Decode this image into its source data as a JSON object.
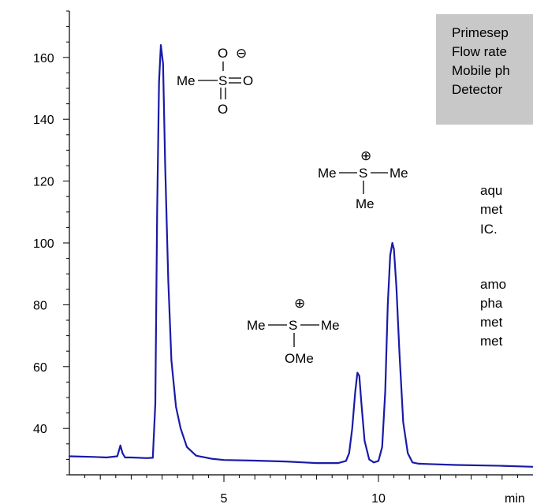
{
  "chart_data": {
    "type": "line",
    "title": "",
    "xlabel": "",
    "ylabel": "",
    "x_unit_label": "min",
    "xlim": [
      0,
      15
    ],
    "ylim": [
      25,
      175
    ],
    "x_ticks": [
      5,
      10
    ],
    "y_ticks": [
      40,
      60,
      80,
      100,
      120,
      140,
      160
    ],
    "grid": false,
    "line_color": "#1a1aa8",
    "series": [
      {
        "x": [
          0,
          0.8,
          1.2,
          1.55,
          1.65,
          1.72,
          1.8,
          2.0,
          2.5,
          2.7,
          2.78,
          2.84,
          2.9,
          2.96,
          3.03,
          3.1,
          3.2,
          3.3,
          3.45,
          3.6,
          3.8,
          4.1,
          4.6,
          5.0,
          6.0,
          7.0,
          8.0,
          8.7,
          8.95,
          9.05,
          9.15,
          9.25,
          9.32,
          9.38,
          9.45,
          9.55,
          9.7,
          9.85,
          10.0,
          10.12,
          10.22,
          10.3,
          10.38,
          10.45,
          10.5,
          10.58,
          10.68,
          10.8,
          10.95,
          11.1,
          11.3,
          11.6,
          12.5,
          14.0,
          15.0
        ],
        "y": [
          31,
          30.8,
          30.6,
          31,
          34.5,
          32,
          30.6,
          30.6,
          30.4,
          30.5,
          48,
          110,
          152,
          164,
          158,
          125,
          88,
          62,
          47,
          40,
          34,
          31.2,
          30.2,
          29.8,
          29.6,
          29.3,
          28.8,
          28.8,
          29.5,
          32,
          40,
          52,
          58,
          57,
          48,
          36,
          30,
          29,
          29.5,
          34,
          52,
          80,
          96,
          100,
          98,
          86,
          64,
          42,
          32,
          29,
          28.6,
          28.5,
          28.2,
          27.9,
          27.6
        ]
      }
    ],
    "annotations": {
      "mesylate": {
        "top": "O",
        "minus": "⊖",
        "left": "Me",
        "center": "S",
        "right": "O",
        "bottom": "O"
      },
      "tms": {
        "plus": "⊕",
        "left": "Me",
        "center": "S",
        "right": "Me",
        "bottom": "Me"
      },
      "tmso": {
        "plus": "⊕",
        "left": "Me",
        "center": "S",
        "right": "Me",
        "bottom": "OMe"
      }
    }
  },
  "info_box": {
    "lines": [
      "Primesep",
      "Flow rate",
      "Mobile ph",
      "Detector"
    ]
  },
  "description": {
    "lines": [
      "aqu",
      "met",
      "IC.",
      "amo",
      "pha",
      "met",
      "met"
    ]
  }
}
